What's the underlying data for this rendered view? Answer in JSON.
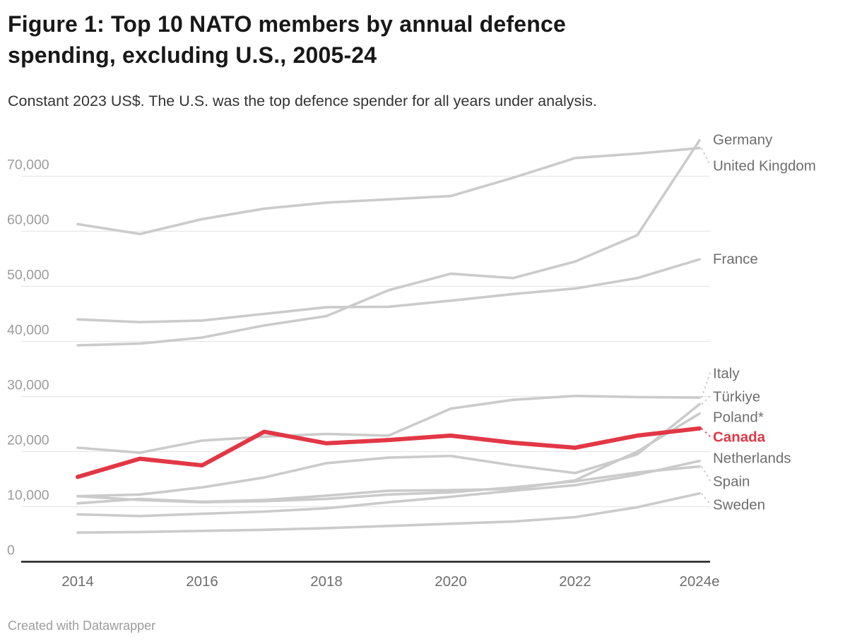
{
  "header": {
    "title_line1": "Figure 1: Top 10 NATO members by annual defence",
    "title_line2": "spending, excluding U.S., 2005-24",
    "subtitle": "Constant 2023 US$. The U.S. was the top defence spender for all years under analysis."
  },
  "footer": {
    "credit": "Created with Datawrapper"
  },
  "chart_data": {
    "type": "line",
    "title": "Figure 1: Top 10 NATO members by annual defence spending, excluding U.S., 2005-24",
    "subtitle": "Constant 2023 US$. The U.S. was the top defence spender for all years under analysis.",
    "unit": "constant 2023 US$ millions",
    "x": [
      2014,
      2015,
      2016,
      2017,
      2018,
      2019,
      2020,
      2021,
      2022,
      2023,
      2024
    ],
    "x_tick_labels": [
      {
        "x": 2014,
        "label": "2014"
      },
      {
        "x": 2016,
        "label": "2016"
      },
      {
        "x": 2018,
        "label": "2018"
      },
      {
        "x": 2020,
        "label": "2020"
      },
      {
        "x": 2022,
        "label": "2022"
      },
      {
        "x": 2024,
        "label": "2024e"
      }
    ],
    "y_ticks": [
      {
        "v": 70000,
        "label": "70,000"
      },
      {
        "v": 60000,
        "label": "60,000"
      },
      {
        "v": 50000,
        "label": "50,000"
      },
      {
        "v": 40000,
        "label": "40,000"
      },
      {
        "v": 30000,
        "label": "30,000"
      },
      {
        "v": 20000,
        "label": "20,000"
      },
      {
        "v": 10000,
        "label": "10,000"
      },
      {
        "v": 0,
        "label": "0"
      }
    ],
    "xlim": [
      2014,
      2024
    ],
    "ylim": [
      0,
      78000
    ],
    "grid": "horizontal",
    "legend_position": "right-edge-labels",
    "colors": {
      "highlight": "#e23745",
      "line": "#cbcbcb",
      "grid": "#e7e7e7",
      "axis": "#1d1d1d",
      "y_tick_text": "#9c9c9c",
      "x_tick_text": "#6e6e6e",
      "label_text": "#6e6e6e",
      "connector": "#bdbdbd"
    },
    "series": [
      {
        "name": "United Kingdom",
        "label": "United Kingdom",
        "label_y": 234,
        "highlight": false,
        "values": [
          61300,
          59500,
          62200,
          64100,
          65200,
          65800,
          66400,
          69700,
          73300,
          74100,
          75100
        ]
      },
      {
        "name": "Germany",
        "label": "Germany",
        "label_y": 197,
        "highlight": false,
        "values": [
          39300,
          39600,
          40700,
          42900,
          44600,
          49300,
          52300,
          51500,
          54500,
          59300,
          76500
        ]
      },
      {
        "name": "France",
        "label": "France",
        "label_y": 366,
        "highlight": false,
        "values": [
          44000,
          43500,
          43800,
          45000,
          46200,
          46300,
          47400,
          48600,
          49600,
          51500,
          54900
        ]
      },
      {
        "name": "Italy",
        "label": "Italy",
        "label_y": 528,
        "highlight": false,
        "values": [
          20700,
          19800,
          22000,
          22700,
          23200,
          22900,
          27800,
          29400,
          30100,
          29900,
          29800
        ]
      },
      {
        "name": "Türkiye",
        "label": "Türkiye",
        "label_y": 561,
        "highlight": false,
        "values": [
          11900,
          12200,
          13500,
          15300,
          17900,
          18900,
          19200,
          17500,
          16100,
          19500,
          28600
        ]
      },
      {
        "name": "Poland",
        "label": "Poland*",
        "label_y": 590,
        "highlight": false,
        "values": [
          10600,
          11400,
          10900,
          11200,
          12000,
          12900,
          13000,
          13200,
          14800,
          20000,
          26900
        ]
      },
      {
        "name": "Netherlands",
        "label": "Netherlands",
        "label_y": 648,
        "highlight": false,
        "values": [
          8600,
          8300,
          8700,
          9100,
          9700,
          10800,
          11800,
          12900,
          13900,
          15800,
          18300
        ]
      },
      {
        "name": "Spain",
        "label": "Spain",
        "label_y": 681,
        "highlight": false,
        "values": [
          11900,
          11200,
          10800,
          11000,
          11400,
          12200,
          12600,
          13500,
          14600,
          16200,
          17300
        ]
      },
      {
        "name": "Sweden",
        "label": "Sweden",
        "label_y": 714,
        "highlight": false,
        "values": [
          5300,
          5400,
          5600,
          5800,
          6100,
          6500,
          6900,
          7300,
          8100,
          9900,
          12400
        ]
      },
      {
        "name": "Canada",
        "label": "Canada",
        "label_y": 618,
        "highlight": true,
        "values": [
          15400,
          18700,
          17500,
          23600,
          21500,
          22100,
          22900,
          21600,
          20700,
          22900,
          24200
        ]
      }
    ]
  }
}
